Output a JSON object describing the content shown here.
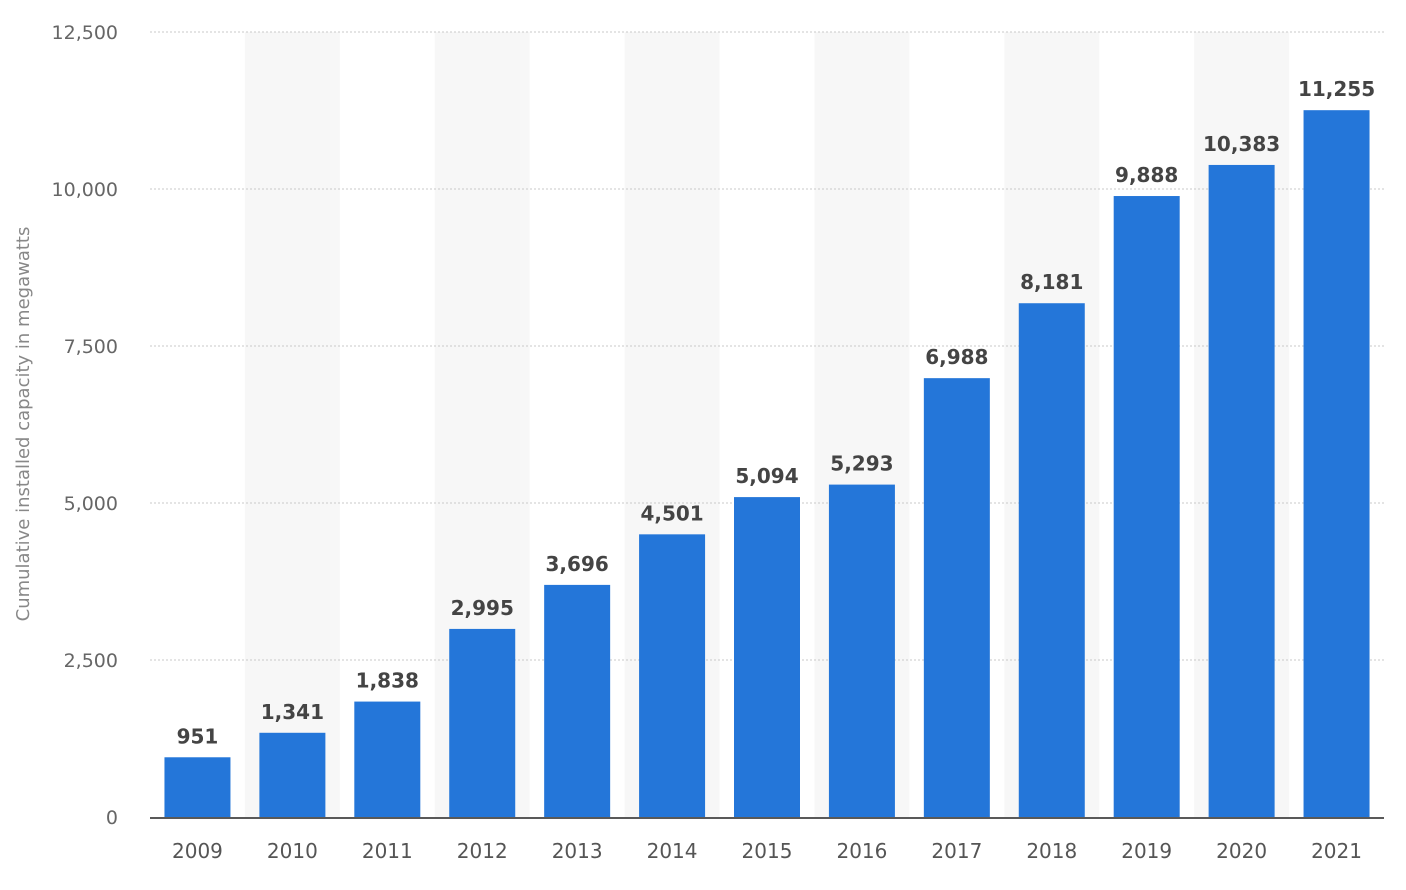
{
  "chart_data": {
    "type": "bar",
    "ylabel": "Cumulative installed capacity in megawatts",
    "xlabel": "",
    "categories": [
      "2009",
      "2010",
      "2011",
      "2012",
      "2013",
      "2014",
      "2015",
      "2016",
      "2017",
      "2018",
      "2019",
      "2020",
      "2021"
    ],
    "values": [
      951,
      1341,
      1838,
      2995,
      3696,
      4501,
      5094,
      5293,
      6988,
      8181,
      9888,
      10383,
      11255
    ],
    "value_labels": [
      "951",
      "1,341",
      "1,838",
      "2,995",
      "3,696",
      "4,501",
      "5,094",
      "5,293",
      "6,988",
      "8,181",
      "9,888",
      "10,383",
      "11,255"
    ],
    "ylim": [
      0,
      12500
    ],
    "yticks": [
      0,
      2500,
      5000,
      7500,
      10000,
      12500
    ],
    "ytick_labels": [
      "0",
      "2,500",
      "5,000",
      "7,500",
      "10,000",
      "12,500"
    ],
    "grid": true,
    "alternating_column_bands": true,
    "colors": {
      "bar": "#2476d9",
      "band": "#f7f7f7",
      "grid": "#c8c8c8",
      "axis": "#222222"
    }
  }
}
